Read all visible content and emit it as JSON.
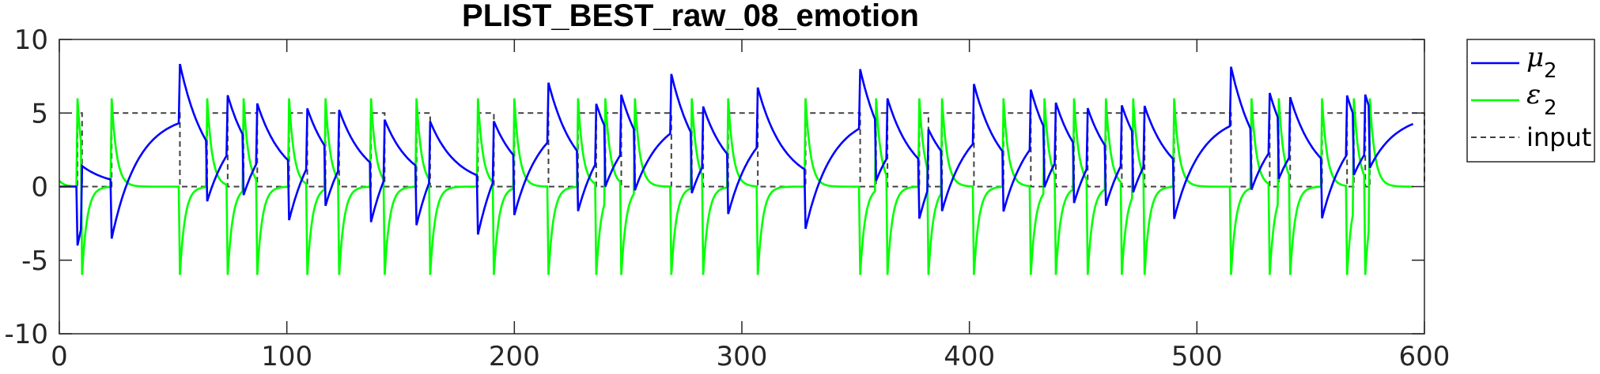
{
  "chart_data": {
    "type": "line",
    "title": "PLIST_BEST_raw_08_emotion",
    "xlabel": "",
    "ylabel": "",
    "xlim": [
      0,
      600
    ],
    "ylim": [
      -10,
      10
    ],
    "x_ticks": [
      "0",
      "100",
      "200",
      "300",
      "400",
      "500",
      "600"
    ],
    "y_ticks": [
      "10",
      "5",
      "0",
      "-5",
      "-10"
    ],
    "legend": {
      "placement": "outside-right"
    },
    "input_pulses": [
      [
        8,
        10
      ],
      [
        23,
        53
      ],
      [
        65,
        74
      ],
      [
        81,
        87
      ],
      [
        101,
        109
      ],
      [
        117,
        123
      ],
      [
        137,
        143
      ],
      [
        157,
        163
      ],
      [
        184,
        191
      ],
      [
        200,
        215
      ],
      [
        228,
        236
      ],
      [
        240,
        247
      ],
      [
        253,
        269
      ],
      [
        278,
        283
      ],
      [
        294,
        307
      ],
      [
        328,
        352
      ],
      [
        359,
        364
      ],
      [
        378,
        382
      ],
      [
        388,
        402
      ],
      [
        415,
        427
      ],
      [
        433,
        438
      ],
      [
        446,
        452
      ],
      [
        460,
        467
      ],
      [
        472,
        477
      ],
      [
        490,
        515
      ],
      [
        524,
        532
      ],
      [
        536,
        541
      ],
      [
        555,
        566
      ],
      [
        569,
        574
      ],
      [
        576,
        600
      ]
    ],
    "input_high": 5,
    "series": [
      {
        "key": "mu2",
        "color": "#0000ff",
        "legend_symbol": "μ",
        "legend_subscript": "2"
      },
      {
        "key": "eps2",
        "color": "#00ff00",
        "legend_symbol": "ε",
        "legend_subscript": "2"
      },
      {
        "key": "input",
        "color": "#404040",
        "dashed": true,
        "legend_label": "input"
      }
    ]
  }
}
